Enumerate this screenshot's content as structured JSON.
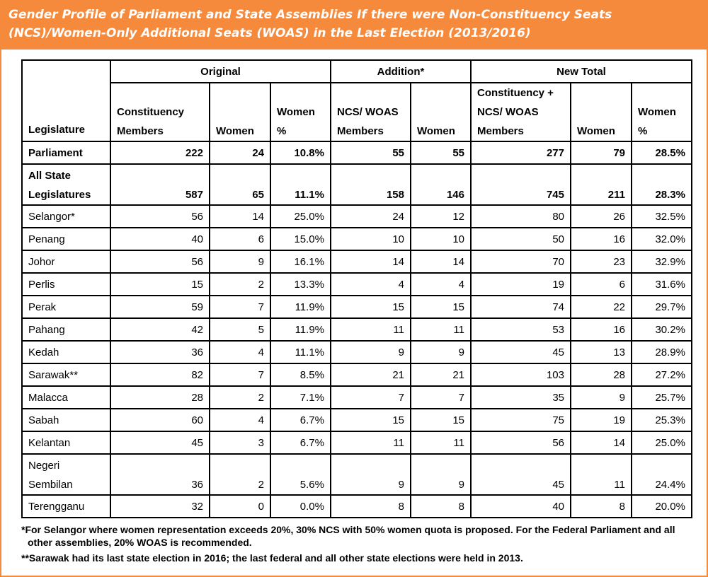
{
  "title": "Gender Profile of Parliament and State Assemblies If there were Non-Constituency Seats (NCS)/Women-Only Additional Seats (WOAS) in the Last Election (2013/2016)",
  "table": {
    "groups": {
      "original": "Original",
      "addition": "Addition*",
      "new_total": "New Total"
    },
    "headers": {
      "legislature": "Legislature",
      "orig_members": "Constituency Members",
      "orig_women": "Women",
      "orig_pct": "Women %",
      "add_members": "NCS/ WOAS Members",
      "add_women": "Women",
      "new_members": "Constituency + NCS/ WOAS Members",
      "new_women": "Women",
      "new_pct": "Women %"
    },
    "rows": [
      [
        "Parliament",
        "222",
        "24",
        "10.8%",
        "55",
        "55",
        "277",
        "79",
        "28.5%"
      ],
      [
        "All State Legislatures",
        "587",
        "65",
        "11.1%",
        "158",
        "146",
        "745",
        "211",
        "28.3%"
      ],
      [
        "Selangor*",
        "56",
        "14",
        "25.0%",
        "24",
        "12",
        "80",
        "26",
        "32.5%"
      ],
      [
        "Penang",
        "40",
        "6",
        "15.0%",
        "10",
        "10",
        "50",
        "16",
        "32.0%"
      ],
      [
        "Johor",
        "56",
        "9",
        "16.1%",
        "14",
        "14",
        "70",
        "23",
        "32.9%"
      ],
      [
        "Perlis",
        "15",
        "2",
        "13.3%",
        "4",
        "4",
        "19",
        "6",
        "31.6%"
      ],
      [
        "Perak",
        "59",
        "7",
        "11.9%",
        "15",
        "15",
        "74",
        "22",
        "29.7%"
      ],
      [
        "Pahang",
        "42",
        "5",
        "11.9%",
        "11",
        "11",
        "53",
        "16",
        "30.2%"
      ],
      [
        "Kedah",
        "36",
        "4",
        "11.1%",
        "9",
        "9",
        "45",
        "13",
        "28.9%"
      ],
      [
        "Sarawak**",
        "82",
        "7",
        "8.5%",
        "21",
        "21",
        "103",
        "28",
        "27.2%"
      ],
      [
        "Malacca",
        "28",
        "2",
        "7.1%",
        "7",
        "7",
        "35",
        "9",
        "25.7%"
      ],
      [
        "Sabah",
        "60",
        "4",
        "6.7%",
        "15",
        "15",
        "75",
        "19",
        "25.3%"
      ],
      [
        "Kelantan",
        "45",
        "3",
        "6.7%",
        "11",
        "11",
        "56",
        "14",
        "25.0%"
      ],
      [
        "Negeri Sembilan",
        "36",
        "2",
        "5.6%",
        "9",
        "9",
        "45",
        "11",
        "24.4%"
      ],
      [
        "Terengganu",
        "32",
        "0",
        "0.0%",
        "8",
        "8",
        "40",
        "8",
        "20.0%"
      ]
    ]
  },
  "footnotes": [
    "*For Selangor where women representation exceeds 20%, 30% NCS with 50% women quota is proposed. For the Federal Parliament and all other assemblies, 20% WOAS is recommended.",
    "**Sarawak had its last state election in 2016; the last federal and all other state elections were held in 2013."
  ],
  "chart_data": {
    "type": "table",
    "title": "Gender Profile of Parliament and State Assemblies If there were Non-Constituency Seats (NCS)/Women-Only Additional Seats (WOAS) in the Last Election (2013/2016)",
    "column_groups": [
      "Original",
      "Addition*",
      "New Total"
    ],
    "columns": [
      "Legislature",
      "Constituency Members",
      "Women",
      "Women %",
      "NCS/ WOAS Members",
      "Women",
      "Constituency + NCS/ WOAS Members",
      "Women",
      "Women %"
    ],
    "rows": [
      [
        "Parliament",
        222,
        24,
        10.8,
        55,
        55,
        277,
        79,
        28.5
      ],
      [
        "All State Legislatures",
        587,
        65,
        11.1,
        158,
        146,
        745,
        211,
        28.3
      ],
      [
        "Selangor*",
        56,
        14,
        25.0,
        24,
        12,
        80,
        26,
        32.5
      ],
      [
        "Penang",
        40,
        6,
        15.0,
        10,
        10,
        50,
        16,
        32.0
      ],
      [
        "Johor",
        56,
        9,
        16.1,
        14,
        14,
        70,
        23,
        32.9
      ],
      [
        "Perlis",
        15,
        2,
        13.3,
        4,
        4,
        19,
        6,
        31.6
      ],
      [
        "Perak",
        59,
        7,
        11.9,
        15,
        15,
        74,
        22,
        29.7
      ],
      [
        "Pahang",
        42,
        5,
        11.9,
        11,
        11,
        53,
        16,
        30.2
      ],
      [
        "Kedah",
        36,
        4,
        11.1,
        9,
        9,
        45,
        13,
        28.9
      ],
      [
        "Sarawak**",
        82,
        7,
        8.5,
        21,
        21,
        103,
        28,
        27.2
      ],
      [
        "Malacca",
        28,
        2,
        7.1,
        7,
        7,
        35,
        9,
        25.7
      ],
      [
        "Sabah",
        60,
        4,
        6.7,
        15,
        15,
        75,
        19,
        25.3
      ],
      [
        "Kelantan",
        45,
        3,
        6.7,
        11,
        11,
        56,
        14,
        25.0
      ],
      [
        "Negeri Sembilan",
        36,
        2,
        5.6,
        9,
        9,
        45,
        11,
        24.4
      ],
      [
        "Terengganu",
        32,
        0,
        0.0,
        8,
        8,
        40,
        8,
        20.0
      ]
    ]
  },
  "colors": {
    "title_bar": "#f58a3c",
    "title_text": "#ffffff",
    "grid": "#000000"
  }
}
